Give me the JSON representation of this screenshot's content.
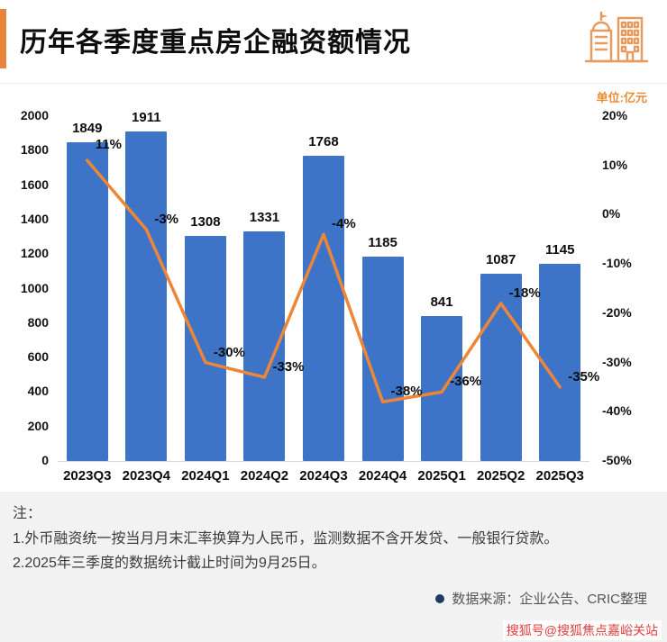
{
  "header": {
    "title": "历年各季度重点房企融资额情况",
    "unit_label": "单位:亿元"
  },
  "chart_data": {
    "type": "bar",
    "subtype": "bar-with-line-overlay",
    "title": "历年各季度重点房企融资额情况",
    "categories": [
      "2023Q3",
      "2023Q4",
      "2024Q1",
      "2024Q2",
      "2024Q3",
      "2024Q4",
      "2025Q1",
      "2025Q2",
      "2025Q3"
    ],
    "bars": {
      "values": [
        1849,
        1911,
        1308,
        1331,
        1768,
        1185,
        841,
        1087,
        1145
      ]
    },
    "line": {
      "values": [
        11,
        -3,
        -30,
        -33,
        -4,
        -38,
        -36,
        -18,
        -35
      ],
      "labels": [
        "11%",
        "-3%",
        "-30%",
        "-33%",
        "-4%",
        "-38%",
        "-36%",
        "-18%",
        "-35%"
      ]
    },
    "left_axis": {
      "min": 0,
      "max": 2000,
      "ticks": [
        2000,
        1800,
        1600,
        1400,
        1200,
        1000,
        800,
        600,
        400,
        200,
        0
      ]
    },
    "right_axis": {
      "min": -50,
      "max": 20,
      "tick_labels": [
        "20%",
        "10%",
        "0%",
        "-10%",
        "-20%",
        "-30%",
        "-40%",
        "-50%"
      ]
    },
    "colors": {
      "bar": "#3E74C8",
      "line": "#ED8636"
    },
    "grid": false,
    "legend": "none"
  },
  "notes": {
    "label": "注：",
    "lines": [
      "1.外币融资统一按当月月末汇率换算为人民币，监测数据不含开发贷、一般银行贷款。",
      "2.2025年三季度的数据统计截止时间为9月25日。"
    ]
  },
  "source": {
    "text": "数据来源：企业公告、CRIC整理"
  },
  "watermark": {
    "text": "搜狐号@搜狐焦点嘉峪关站"
  }
}
